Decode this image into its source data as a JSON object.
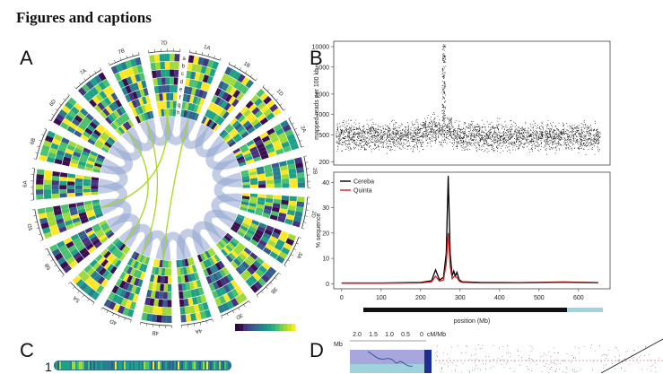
{
  "heading": "Figures and captions",
  "panels": {
    "a": "A",
    "b": "B",
    "c": "C",
    "d": "D"
  },
  "circos": {
    "chromosomes": [
      "1A",
      "1B",
      "1D",
      "2A",
      "2B",
      "2D",
      "3A",
      "3B",
      "3D",
      "4A",
      "4B",
      "4D",
      "5A",
      "5B",
      "5D",
      "6A",
      "6B",
      "6D",
      "7A",
      "7B",
      "7D"
    ],
    "track_labels": [
      "a",
      "b",
      "c",
      "d",
      "e",
      "f",
      "g",
      "h"
    ],
    "palette": [
      "#3b0f4f",
      "#46337e",
      "#365c8d",
      "#277f8e",
      "#1fa187",
      "#4ac16d",
      "#a0da39",
      "#fde725"
    ]
  },
  "chart_data": [
    {
      "type": "scatter",
      "panel": "B-top",
      "ylabel": "mapped reads per 100 kb",
      "yscale": "log",
      "ylim": [
        180,
        12000
      ],
      "yticks": [
        200,
        500,
        1000,
        2000,
        5000,
        10000
      ],
      "xlim": [
        0,
        680
      ],
      "baseline": 480,
      "peak_position": 270,
      "peak_value": 10000
    },
    {
      "type": "line",
      "panel": "B-bottom",
      "xlabel": "position (Mb)",
      "ylabel": "% sequence",
      "xlim": [
        -20,
        680
      ],
      "ylim": [
        -2,
        44
      ],
      "xticks": [
        0,
        100,
        200,
        300,
        400,
        500,
        600
      ],
      "yticks": [
        0,
        10,
        20,
        30,
        40
      ],
      "series": [
        {
          "name": "Cereba",
          "color": "#000000",
          "points": [
            [
              0,
              0.3
            ],
            [
              100,
              0.3
            ],
            [
              200,
              0.5
            ],
            [
              228,
              1.2
            ],
            [
              238,
              5.5
            ],
            [
              248,
              1.5
            ],
            [
              258,
              2.5
            ],
            [
              265,
              12
            ],
            [
              270,
              42.5
            ],
            [
              275,
              12
            ],
            [
              280,
              3
            ],
            [
              284,
              5
            ],
            [
              288,
              3
            ],
            [
              292,
              4.5
            ],
            [
              298,
              1.5
            ],
            [
              305,
              0.8
            ],
            [
              350,
              0.5
            ],
            [
              450,
              0.4
            ],
            [
              560,
              0.7
            ],
            [
              650,
              0.4
            ]
          ]
        },
        {
          "name": "Quinta",
          "color": "#cc2020",
          "points": [
            [
              0,
              0.2
            ],
            [
              100,
              0.2
            ],
            [
              200,
              0.3
            ],
            [
              228,
              0.8
            ],
            [
              238,
              3
            ],
            [
              248,
              1
            ],
            [
              258,
              1.5
            ],
            [
              265,
              8
            ],
            [
              270,
              20
            ],
            [
              275,
              7
            ],
            [
              280,
              2
            ],
            [
              286,
              3
            ],
            [
              292,
              2.5
            ],
            [
              298,
              1
            ],
            [
              305,
              0.5
            ],
            [
              350,
              0.3
            ],
            [
              450,
              0.3
            ],
            [
              560,
              0.5
            ],
            [
              650,
              0.3
            ]
          ]
        }
      ]
    }
  ],
  "panel_c": {
    "row_label": "1"
  },
  "panel_d": {
    "top_axis_values": [
      "2.0",
      "1.5",
      "1.0",
      "0.5",
      "0"
    ],
    "top_axis_unit": "cM/Mb",
    "left_axis_unit": "Mb"
  }
}
